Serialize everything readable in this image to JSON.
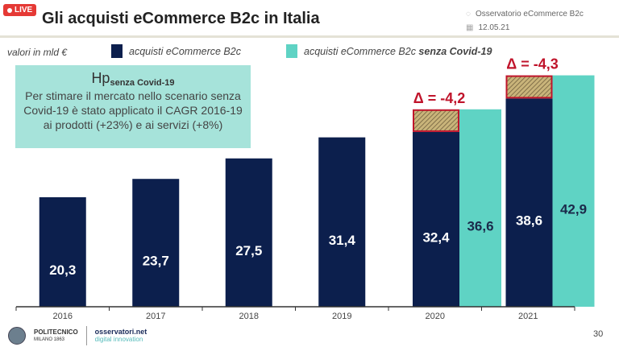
{
  "live_badge": "LIVE",
  "header": {
    "title": "Gli acquisti eCommerce B2c in Italia",
    "source": "Osservatorio eCommerce B2c",
    "date": "12.05.21"
  },
  "units": "valori in mld €",
  "legend": [
    {
      "label": "acquisti eCommerce B2c",
      "bold": "",
      "color": "#0c1f4d"
    },
    {
      "label": "acquisti eCommerce B2c ",
      "bold": "senza Covid-19",
      "color": "#5fd3c4"
    }
  ],
  "hypothesis": {
    "title": "Hp",
    "subscript": "senza Covid-19",
    "text": "Per stimare il mercato nello scenario senza Covid-19 è stato applicato il CAGR 2016-19 ai prodotti (+23%) e ai servizi (+8%)"
  },
  "chart_data": {
    "type": "bar",
    "categories": [
      "2016",
      "2017",
      "2018",
      "2019",
      "2020",
      "2021"
    ],
    "series": [
      {
        "name": "acquisti eCommerce B2c",
        "values": [
          20.3,
          23.7,
          27.5,
          31.4,
          32.4,
          38.6
        ],
        "labels": [
          "20,3",
          "23,7",
          "27,5",
          "31,4",
          "32,4",
          "38,6"
        ],
        "color": "#0c1f4d"
      },
      {
        "name": "acquisti eCommerce B2c senza Covid-19",
        "values": [
          null,
          null,
          null,
          null,
          36.6,
          42.9
        ],
        "labels": [
          "",
          "",
          "",
          "",
          "36,6",
          "42,9"
        ],
        "color": "#5fd3c4"
      }
    ],
    "annotations": [
      {
        "category": "2020",
        "text": "Δ = -4,2"
      },
      {
        "category": "2021",
        "text": "Δ = -4,3"
      }
    ],
    "gap_style": {
      "fill": "#b8a46a",
      "border": "#c0142b"
    },
    "ylim": [
      0,
      45
    ]
  },
  "footer": {
    "logo1": "POLITECNICO",
    "logo1_sub": "MILANO 1863",
    "logo2": "osservatori.net",
    "logo2_sub": "digital innovation",
    "page": "30"
  }
}
